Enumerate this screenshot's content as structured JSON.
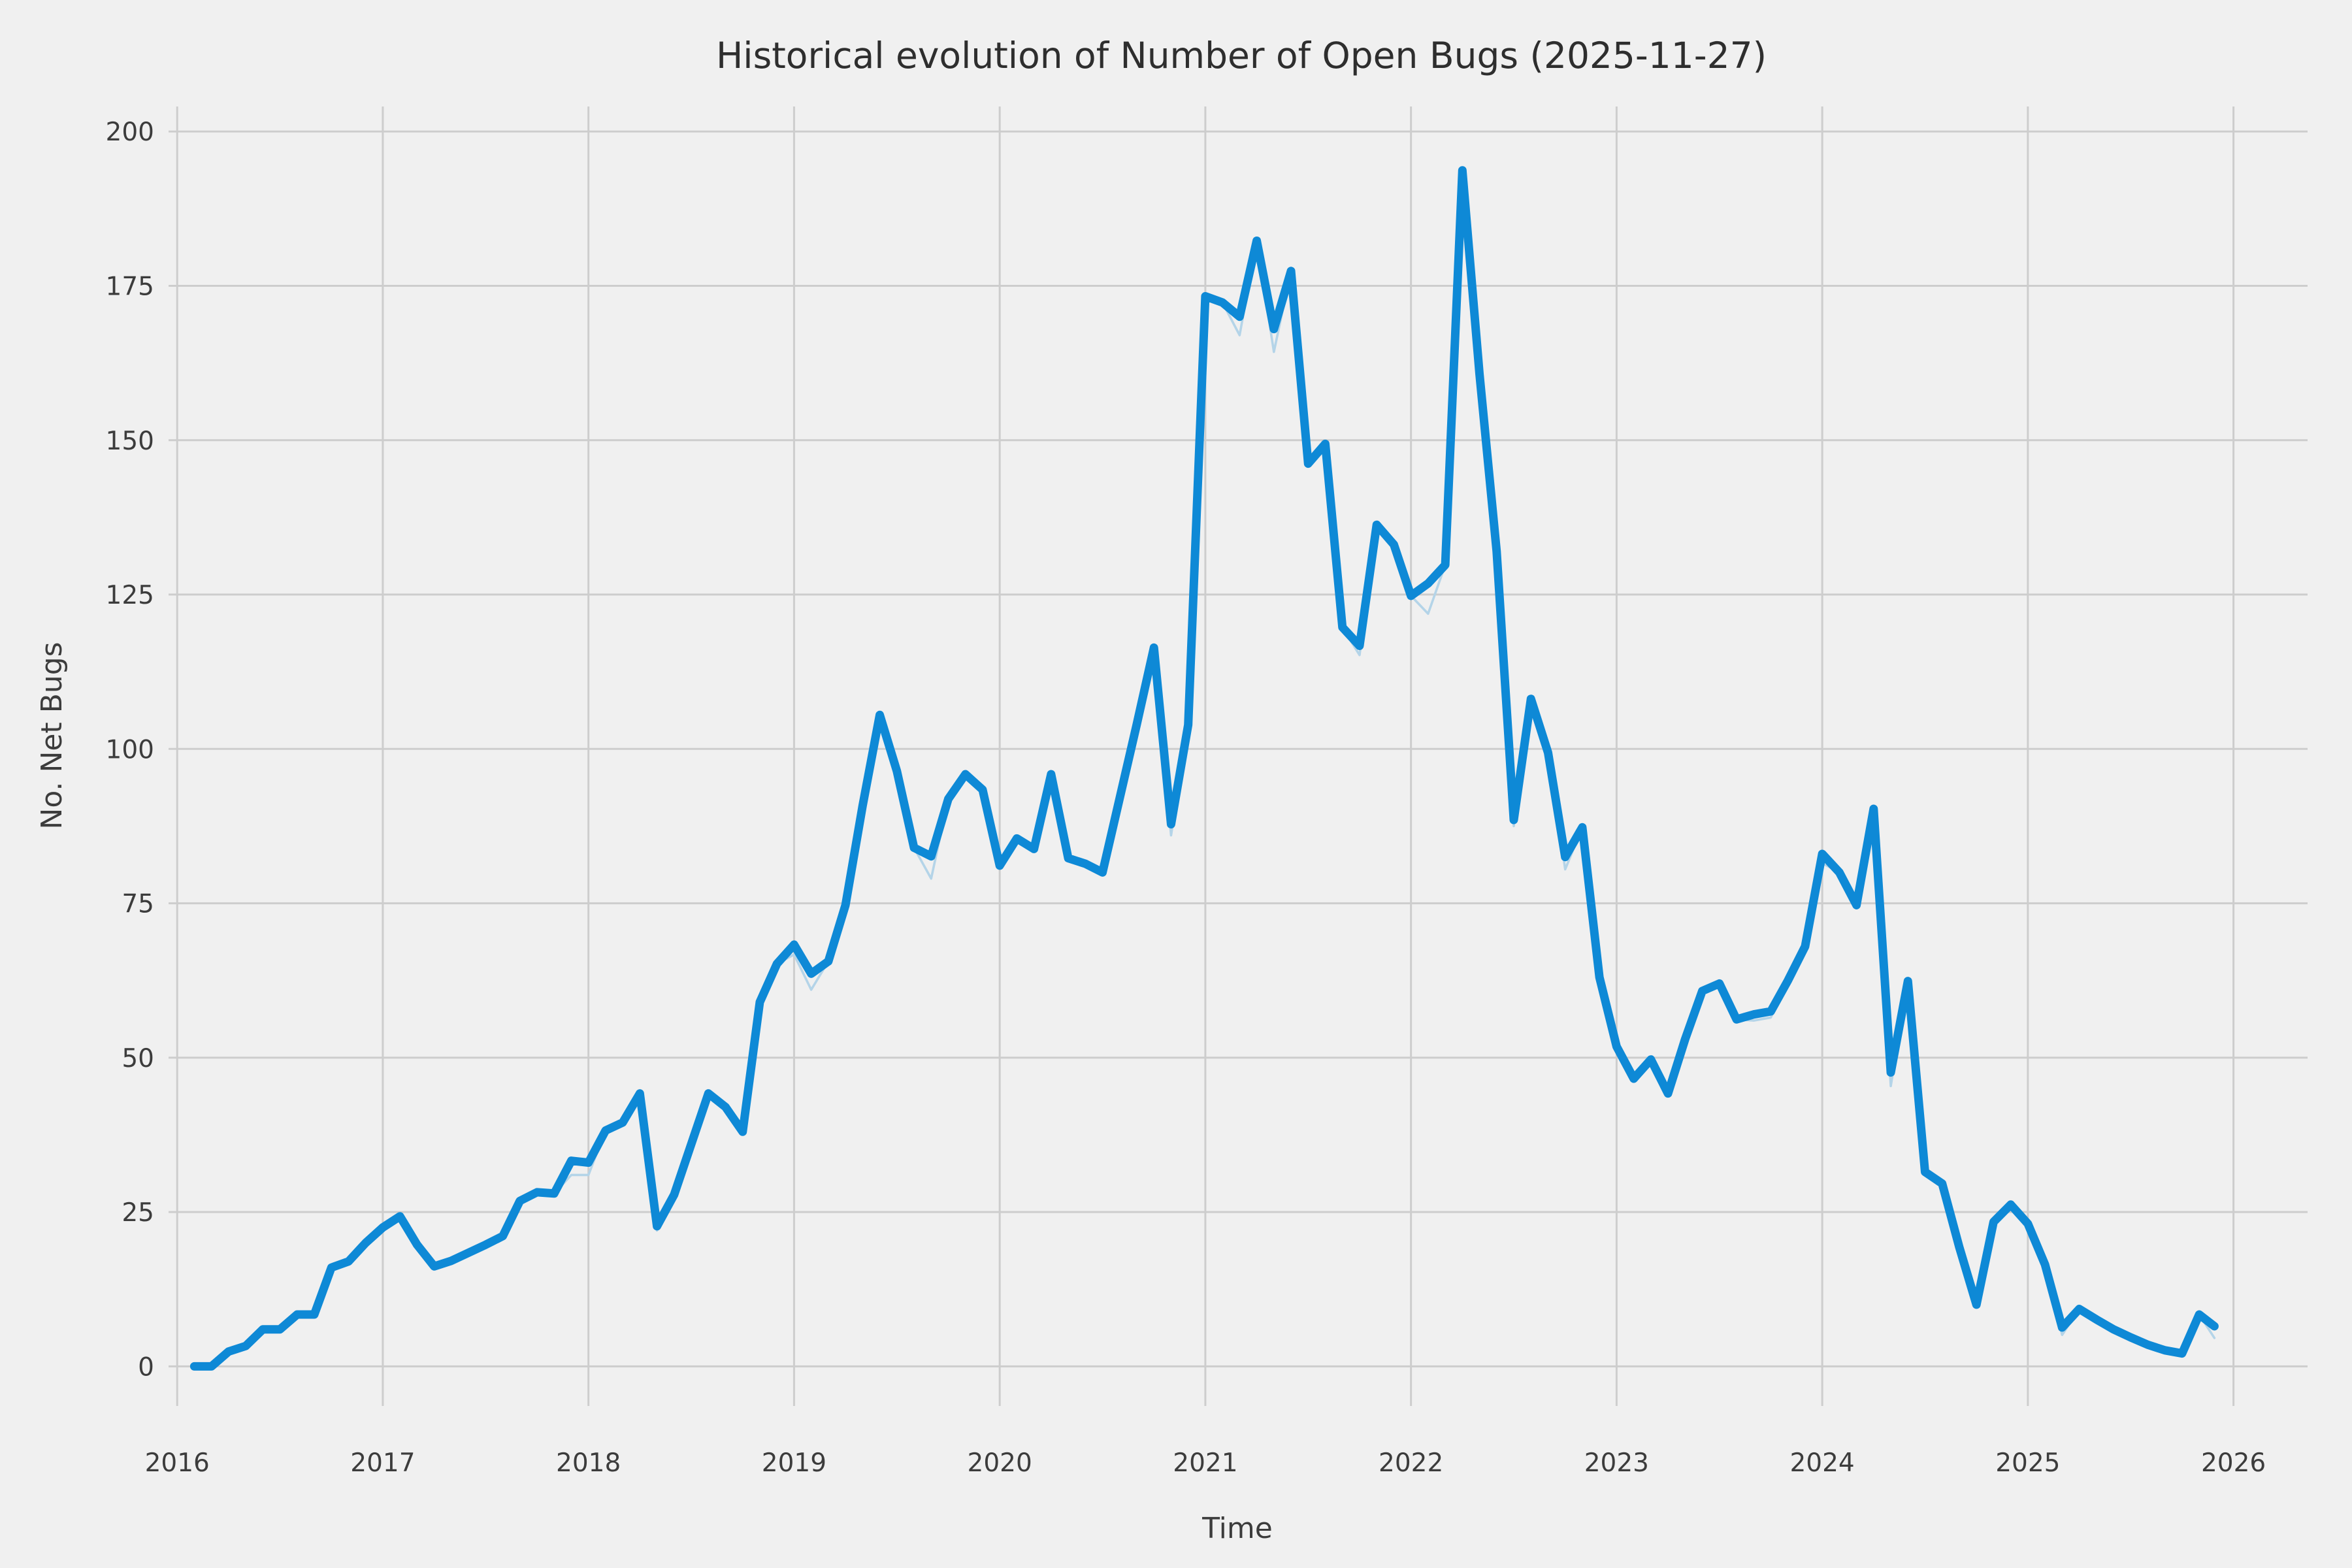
{
  "chart_data": {
    "type": "line",
    "title": "Historical evolution of Number of Open Bugs (2025-11-27)",
    "xlabel": "Time",
    "ylabel": "No. Net Bugs",
    "grid": true,
    "legend": "none",
    "background_color": "#f0f0f0",
    "gridline_color": "#cdcdcd",
    "text_color": "#3c3c3c",
    "x_ticks": [
      "2016",
      "2017",
      "2018",
      "2019",
      "2020",
      "2021",
      "2022",
      "2023",
      "2024",
      "2025",
      "2026"
    ],
    "y_ticks": [
      0,
      25,
      50,
      75,
      100,
      125,
      150,
      175,
      200
    ],
    "x_range": [
      2015.955,
      2026.36
    ],
    "y_range": [
      -6.7,
      208.3
    ],
    "series": [
      {
        "name": "open_bugs_raw",
        "color": "#b4d4e8",
        "width": 1.8,
        "points": [
          [
            "2016-01",
            0
          ],
          [
            "2016-02",
            0
          ],
          [
            "2016-03",
            2.4
          ],
          [
            "2016-04",
            3.3
          ],
          [
            "2016-05",
            6
          ],
          [
            "2016-06",
            6
          ],
          [
            "2016-07",
            8.4
          ],
          [
            "2016-08",
            8.4
          ],
          [
            "2016-09",
            16
          ],
          [
            "2016-10",
            17
          ],
          [
            "2016-11",
            20
          ],
          [
            "2016-12",
            22.5
          ],
          [
            "2017-01",
            24.3
          ],
          [
            "2017-02",
            19.7
          ],
          [
            "2017-03",
            16.2
          ],
          [
            "2017-04",
            17.1
          ],
          [
            "2017-05",
            18.4
          ],
          [
            "2017-06",
            19.7
          ],
          [
            "2017-07",
            21.1
          ],
          [
            "2017-08",
            26.8
          ],
          [
            "2017-09",
            28.2
          ],
          [
            "2017-10",
            28
          ],
          [
            "2017-11",
            31.0
          ],
          [
            "2017-12",
            31.0
          ],
          [
            "2018-01",
            38.2
          ],
          [
            "2018-02",
            39.5
          ],
          [
            "2018-03",
            44.2
          ],
          [
            "2018-04",
            22.0
          ],
          [
            "2018-05",
            27.8
          ],
          [
            "2018-06",
            36
          ],
          [
            "2018-07",
            44.2
          ],
          [
            "2018-08",
            42
          ],
          [
            "2018-09",
            38
          ],
          [
            "2018-10",
            59
          ],
          [
            "2018-11",
            65.2
          ],
          [
            "2018-12",
            66.7
          ],
          [
            "2019-01",
            61.0
          ],
          [
            "2019-02",
            65.6
          ],
          [
            "2019-03",
            74.7
          ],
          [
            "2019-04",
            90.8
          ],
          [
            "2019-05",
            105.5
          ],
          [
            "2019-06",
            96.4
          ],
          [
            "2019-07",
            84
          ],
          [
            "2019-08",
            79.0
          ],
          [
            "2019-09",
            91.9
          ],
          [
            "2019-10",
            95.9
          ],
          [
            "2019-11",
            93.4
          ],
          [
            "2019-12",
            81.1
          ],
          [
            "2020-01",
            85.5
          ],
          [
            "2020-02",
            83.8
          ],
          [
            "2020-03",
            95.9
          ],
          [
            "2020-04",
            82.3
          ],
          [
            "2020-05",
            81.4
          ],
          [
            "2020-06",
            80
          ],
          [
            "2020-07",
            92
          ],
          [
            "2020-08",
            104
          ],
          [
            "2020-09",
            116.4
          ],
          [
            "2020-10",
            86.0
          ],
          [
            "2020-11",
            103.9
          ],
          [
            "2020-12",
            173.3
          ],
          [
            "2021-01",
            172.3
          ],
          [
            "2021-02",
            167.0
          ],
          [
            "2021-03",
            182.3
          ],
          [
            "2021-04",
            164.3
          ],
          [
            "2021-05",
            177.4
          ],
          [
            "2021-06",
            146.2
          ],
          [
            "2021-07",
            149.4
          ],
          [
            "2021-08",
            119.7
          ],
          [
            "2021-09",
            115.2
          ],
          [
            "2021-10",
            136.3
          ],
          [
            "2021-11",
            133.1
          ],
          [
            "2021-12",
            124.8
          ],
          [
            "2022-01",
            121.9
          ],
          [
            "2022-02",
            129.8
          ],
          [
            "2022-03",
            193.7
          ],
          [
            "2022-04",
            160.7
          ],
          [
            "2022-05",
            132
          ],
          [
            "2022-06",
            87.5
          ],
          [
            "2022-07",
            108.1
          ],
          [
            "2022-08",
            99.4
          ],
          [
            "2022-09",
            80.5
          ],
          [
            "2022-10",
            87.3
          ],
          [
            "2022-11",
            63
          ],
          [
            "2022-12",
            51.8
          ],
          [
            "2023-01",
            46.6
          ],
          [
            "2023-02",
            49.7
          ],
          [
            "2023-03",
            44.2
          ],
          [
            "2023-04",
            53
          ],
          [
            "2023-05",
            60.8
          ],
          [
            "2023-06",
            62
          ],
          [
            "2023-07",
            56.2
          ],
          [
            "2023-08",
            56.0
          ],
          [
            "2023-09",
            56.5
          ],
          [
            "2023-10",
            62.5
          ],
          [
            "2023-11",
            68
          ],
          [
            "2023-12",
            81.5
          ],
          [
            "2024-01",
            80
          ],
          [
            "2024-02",
            74.7
          ],
          [
            "2024-03",
            90.3
          ],
          [
            "2024-04",
            45.4
          ],
          [
            "2024-05",
            62.4
          ],
          [
            "2024-06",
            31.5
          ],
          [
            "2024-07",
            29.6
          ],
          [
            "2024-08",
            19.3
          ],
          [
            "2024-09",
            10
          ],
          [
            "2024-10",
            23.4
          ],
          [
            "2024-11",
            26.2
          ],
          [
            "2024-12",
            23.1
          ],
          [
            "2025-01",
            16.5
          ],
          [
            "2025-02",
            5.1
          ],
          [
            "2025-03",
            9.3
          ],
          [
            "2025-04",
            7.6
          ],
          [
            "2025-05",
            6
          ],
          [
            "2025-06",
            4.7
          ],
          [
            "2025-07",
            3.5
          ],
          [
            "2025-08",
            2.6
          ],
          [
            "2025-09",
            2.1
          ],
          [
            "2025-10",
            8.4
          ],
          [
            "2025-11-27",
            4.6
          ]
        ]
      },
      {
        "name": "open_bugs",
        "color": "#0e89d6",
        "width": 6.5,
        "points": [
          [
            "2016-01",
            0
          ],
          [
            "2016-02",
            0
          ],
          [
            "2016-03",
            2.4
          ],
          [
            "2016-04",
            3.3
          ],
          [
            "2016-05",
            6
          ],
          [
            "2016-06",
            6
          ],
          [
            "2016-07",
            8.4
          ],
          [
            "2016-08",
            8.4
          ],
          [
            "2016-09",
            16
          ],
          [
            "2016-10",
            17
          ],
          [
            "2016-11",
            20
          ],
          [
            "2016-12",
            22.5
          ],
          [
            "2017-01",
            24.3
          ],
          [
            "2017-02",
            19.7
          ],
          [
            "2017-03",
            16.2
          ],
          [
            "2017-04",
            17.1
          ],
          [
            "2017-05",
            18.4
          ],
          [
            "2017-06",
            19.7
          ],
          [
            "2017-07",
            21.1
          ],
          [
            "2017-08",
            26.8
          ],
          [
            "2017-09",
            28.2
          ],
          [
            "2017-10",
            28
          ],
          [
            "2017-11",
            33.3
          ],
          [
            "2017-12",
            33
          ],
          [
            "2018-01",
            38.2
          ],
          [
            "2018-02",
            39.5
          ],
          [
            "2018-03",
            44.2
          ],
          [
            "2018-04",
            22.7
          ],
          [
            "2018-05",
            27.8
          ],
          [
            "2018-06",
            36
          ],
          [
            "2018-07",
            44.2
          ],
          [
            "2018-08",
            42
          ],
          [
            "2018-09",
            38
          ],
          [
            "2018-10",
            59
          ],
          [
            "2018-11",
            65.2
          ],
          [
            "2018-12",
            68.3
          ],
          [
            "2019-01",
            63.6
          ],
          [
            "2019-02",
            65.6
          ],
          [
            "2019-03",
            74.7
          ],
          [
            "2019-04",
            90.8
          ],
          [
            "2019-05",
            105.5
          ],
          [
            "2019-06",
            96.4
          ],
          [
            "2019-07",
            84
          ],
          [
            "2019-08",
            82.6
          ],
          [
            "2019-09",
            91.9
          ],
          [
            "2019-10",
            95.9
          ],
          [
            "2019-11",
            93.4
          ],
          [
            "2019-12",
            81.1
          ],
          [
            "2020-01",
            85.5
          ],
          [
            "2020-02",
            83.8
          ],
          [
            "2020-03",
            95.9
          ],
          [
            "2020-04",
            82.3
          ],
          [
            "2020-05",
            81.4
          ],
          [
            "2020-06",
            80
          ],
          [
            "2020-07",
            92
          ],
          [
            "2020-08",
            104
          ],
          [
            "2020-09",
            116.4
          ],
          [
            "2020-10",
            87.8
          ],
          [
            "2020-11",
            103.9
          ],
          [
            "2020-12",
            173.3
          ],
          [
            "2021-01",
            172.3
          ],
          [
            "2021-02",
            170
          ],
          [
            "2021-03",
            182.3
          ],
          [
            "2021-04",
            168
          ],
          [
            "2021-05",
            177.4
          ],
          [
            "2021-06",
            146.2
          ],
          [
            "2021-07",
            149.4
          ],
          [
            "2021-08",
            119.7
          ],
          [
            "2021-09",
            116.7
          ],
          [
            "2021-10",
            136.3
          ],
          [
            "2021-11",
            133.1
          ],
          [
            "2021-12",
            124.8
          ],
          [
            "2022-01",
            126.8
          ],
          [
            "2022-02",
            129.8
          ],
          [
            "2022-03",
            193.7
          ],
          [
            "2022-04",
            160.7
          ],
          [
            "2022-05",
            132
          ],
          [
            "2022-06",
            88.5
          ],
          [
            "2022-07",
            108.1
          ],
          [
            "2022-08",
            99.4
          ],
          [
            "2022-09",
            82.5
          ],
          [
            "2022-10",
            87.3
          ],
          [
            "2022-11",
            63
          ],
          [
            "2022-12",
            51.8
          ],
          [
            "2023-01",
            46.6
          ],
          [
            "2023-02",
            49.7
          ],
          [
            "2023-03",
            44.2
          ],
          [
            "2023-04",
            53
          ],
          [
            "2023-05",
            60.8
          ],
          [
            "2023-06",
            62
          ],
          [
            "2023-07",
            56.2
          ],
          [
            "2023-08",
            57
          ],
          [
            "2023-09",
            57.5
          ],
          [
            "2023-10",
            62.5
          ],
          [
            "2023-11",
            68
          ],
          [
            "2023-12",
            83
          ],
          [
            "2024-01",
            80
          ],
          [
            "2024-02",
            74.7
          ],
          [
            "2024-03",
            90.3
          ],
          [
            "2024-04",
            47.6
          ],
          [
            "2024-05",
            62.4
          ],
          [
            "2024-06",
            31.5
          ],
          [
            "2024-07",
            29.6
          ],
          [
            "2024-08",
            19.3
          ],
          [
            "2024-09",
            10
          ],
          [
            "2024-10",
            23.4
          ],
          [
            "2024-11",
            26.2
          ],
          [
            "2024-12",
            23.1
          ],
          [
            "2025-01",
            16.5
          ],
          [
            "2025-02",
            6.3
          ],
          [
            "2025-03",
            9.3
          ],
          [
            "2025-04",
            7.6
          ],
          [
            "2025-05",
            6
          ],
          [
            "2025-06",
            4.7
          ],
          [
            "2025-07",
            3.5
          ],
          [
            "2025-08",
            2.6
          ],
          [
            "2025-09",
            2.1
          ],
          [
            "2025-10",
            8.4
          ],
          [
            "2025-11-27",
            6.5
          ]
        ]
      }
    ]
  }
}
